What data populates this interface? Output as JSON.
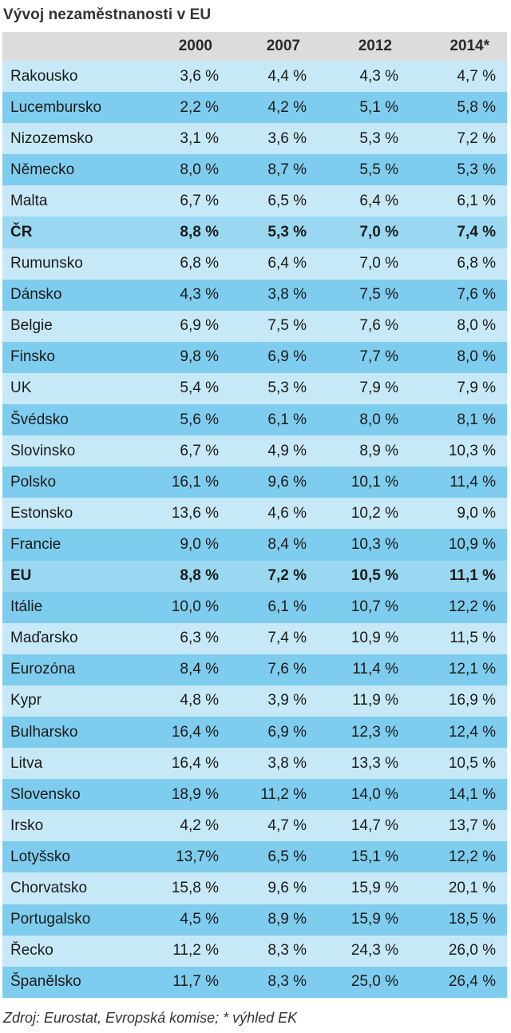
{
  "title": "Vývoj nezaměstnanosti v EU",
  "headers": [
    "",
    "2000",
    "2007",
    "2012",
    "2014*"
  ],
  "rows": [
    {
      "country": "Rakousko",
      "values": [
        "3,6 %",
        "4,4 %",
        "4,3 %",
        "4,7 %"
      ],
      "style": "light"
    },
    {
      "country": "Lucembursko",
      "values": [
        "2,2 %",
        "4,2 %",
        "5,1 %",
        "5,8 %"
      ],
      "style": "dark"
    },
    {
      "country": "Nizozemsko",
      "values": [
        "3,1 %",
        "3,6 %",
        "5,3 %",
        "7,2 %"
      ],
      "style": "light"
    },
    {
      "country": "Německo",
      "values": [
        "8,0 %",
        "8,7 %",
        "5,5 %",
        "5,3 %"
      ],
      "style": "dark"
    },
    {
      "country": "Malta",
      "values": [
        "6,7 %",
        "6,5 %",
        "6,4 %",
        "6,1 %"
      ],
      "style": "light"
    },
    {
      "country": "ČR",
      "values": [
        "8,8 %",
        "5,3 %",
        "7,0 %",
        "7,4 %"
      ],
      "style": "highlight"
    },
    {
      "country": "Rumunsko",
      "values": [
        "6,8 %",
        "6,4 %",
        "7,0 %",
        "6,8 %"
      ],
      "style": "light"
    },
    {
      "country": "Dánsko",
      "values": [
        "4,3 %",
        "3,8 %",
        "7,5 %",
        "7,6 %"
      ],
      "style": "dark"
    },
    {
      "country": "Belgie",
      "values": [
        "6,9 %",
        "7,5 %",
        "7,6 %",
        "8,0 %"
      ],
      "style": "light"
    },
    {
      "country": "Finsko",
      "values": [
        "9,8 %",
        "6,9 %",
        "7,7 %",
        "8,0 %"
      ],
      "style": "dark"
    },
    {
      "country": "UK",
      "values": [
        "5,4 %",
        "5,3 %",
        "7,9 %",
        "7,9 %"
      ],
      "style": "light"
    },
    {
      "country": "Švédsko",
      "values": [
        "5,6 %",
        "6,1 %",
        "8,0 %",
        "8,1 %"
      ],
      "style": "dark"
    },
    {
      "country": "Slovinsko",
      "values": [
        "6,7 %",
        "4,9 %",
        "8,9 %",
        "10,3 %"
      ],
      "style": "light"
    },
    {
      "country": "Polsko",
      "values": [
        "16,1 %",
        "9,6 %",
        "10,1 %",
        "11,4 %"
      ],
      "style": "dark"
    },
    {
      "country": "Estonsko",
      "values": [
        "13,6 %",
        "4,6 %",
        "10,2 %",
        "9,0 %"
      ],
      "style": "light"
    },
    {
      "country": "Francie",
      "values": [
        "9,0 %",
        "8,4 %",
        "10,3 %",
        "10,9 %"
      ],
      "style": "dark"
    },
    {
      "country": "EU",
      "values": [
        "8,8 %",
        "7,2 %",
        "10,5 %",
        "11,1 %"
      ],
      "style": "highlight"
    },
    {
      "country": "Itálie",
      "values": [
        "10,0 %",
        "6,1 %",
        "10,7 %",
        "12,2 %"
      ],
      "style": "dark"
    },
    {
      "country": "Maďarsko",
      "values": [
        "6,3 %",
        "7,4 %",
        "10,9 %",
        "11,5 %"
      ],
      "style": "light"
    },
    {
      "country": "Eurozóna",
      "values": [
        "8,4 %",
        "7,6 %",
        "11,4 %",
        "12,1 %"
      ],
      "style": "dark"
    },
    {
      "country": "Kypr",
      "values": [
        "4,8 %",
        "3,9 %",
        "11,9 %",
        "16,9 %"
      ],
      "style": "light"
    },
    {
      "country": "Bulharsko",
      "values": [
        "16,4 %",
        "6,9 %",
        "12,3 %",
        "12,4 %"
      ],
      "style": "dark"
    },
    {
      "country": "Litva",
      "values": [
        "16,4 %",
        "3,8 %",
        "13,3 %",
        "10,5 %"
      ],
      "style": "light"
    },
    {
      "country": "Slovensko",
      "values": [
        "18,9 %",
        "11,2 %",
        "14,0 %",
        "14,1 %"
      ],
      "style": "dark"
    },
    {
      "country": "Irsko",
      "values": [
        "4,2 %",
        "4,7 %",
        "14,7 %",
        "13,7 %"
      ],
      "style": "light"
    },
    {
      "country": "Lotyšsko",
      "values": [
        "13,7%",
        "6,5 %",
        "15,1 %",
        "12,2 %"
      ],
      "style": "dark"
    },
    {
      "country": "Chorvatsko",
      "values": [
        "15,8 %",
        "9,6 %",
        "15,9 %",
        "20,1 %"
      ],
      "style": "light"
    },
    {
      "country": "Portugalsko",
      "values": [
        "4,5 %",
        "8,9 %",
        "15,9 %",
        "18,5 %"
      ],
      "style": "dark"
    },
    {
      "country": "Řecko",
      "values": [
        "11,2 %",
        "8,3 %",
        "24,3 %",
        "26,0 %"
      ],
      "style": "light"
    },
    {
      "country": "Španělsko",
      "values": [
        "11,7 %",
        "8,3 %",
        "25,0 %",
        "26,4 %"
      ],
      "style": "dark"
    }
  ],
  "source": "Zdroj: Eurostat, Evropská komise; * výhled EK",
  "colors": {
    "header_bg": "#dcdcdc",
    "row_light": "#c7e9f7",
    "row_dark": "#7fcdee",
    "row_highlight": "#9ad8f2"
  }
}
